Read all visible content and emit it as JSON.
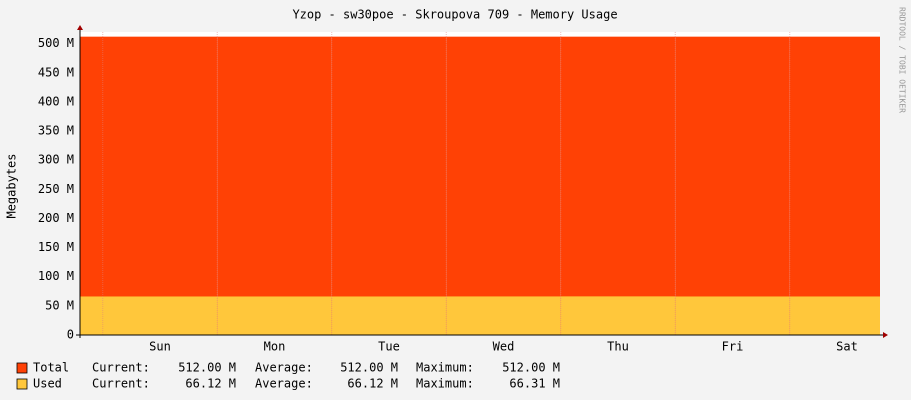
{
  "chart_data": {
    "type": "area",
    "title": "Yzop - sw30poe - Skroupova 709 - Memory Usage",
    "y_label": "Megabytes",
    "side_text": "RRDTOOL / TOBI OETIKER",
    "categories": [
      "Sun",
      "Mon",
      "Tue",
      "Wed",
      "Thu",
      "Fri",
      "Sat"
    ],
    "ylim": [
      0,
      520
    ],
    "yticks": [
      0,
      {
        "value": 50,
        "label": "50 M"
      },
      {
        "value": 100,
        "label": "100 M"
      },
      {
        "value": 150,
        "label": "150 M"
      },
      {
        "value": 200,
        "label": "200 M"
      },
      {
        "value": 250,
        "label": "250 M"
      },
      {
        "value": 300,
        "label": "300 M"
      },
      {
        "value": 350,
        "label": "350 M"
      },
      {
        "value": 400,
        "label": "400 M"
      },
      {
        "value": 450,
        "label": "450 M"
      },
      {
        "value": 500,
        "label": "500 M"
      }
    ],
    "grid": true,
    "stat_labels": [
      "Current:",
      "Average:",
      "Maximum:"
    ],
    "series": [
      {
        "name": "Total",
        "color": "#ff4105",
        "values": [
          512,
          512,
          512,
          512,
          512,
          512,
          512
        ],
        "stats": [
          "512.00 M",
          "512.00 M",
          "512.00 M"
        ]
      },
      {
        "name": "Used",
        "color": "#ffc73b",
        "values": [
          66.12,
          66.12,
          66.12,
          66.2,
          66.31,
          66.12,
          66.12
        ],
        "stats": [
          "66.12 M",
          "66.12 M",
          "66.31 M"
        ]
      }
    ]
  }
}
